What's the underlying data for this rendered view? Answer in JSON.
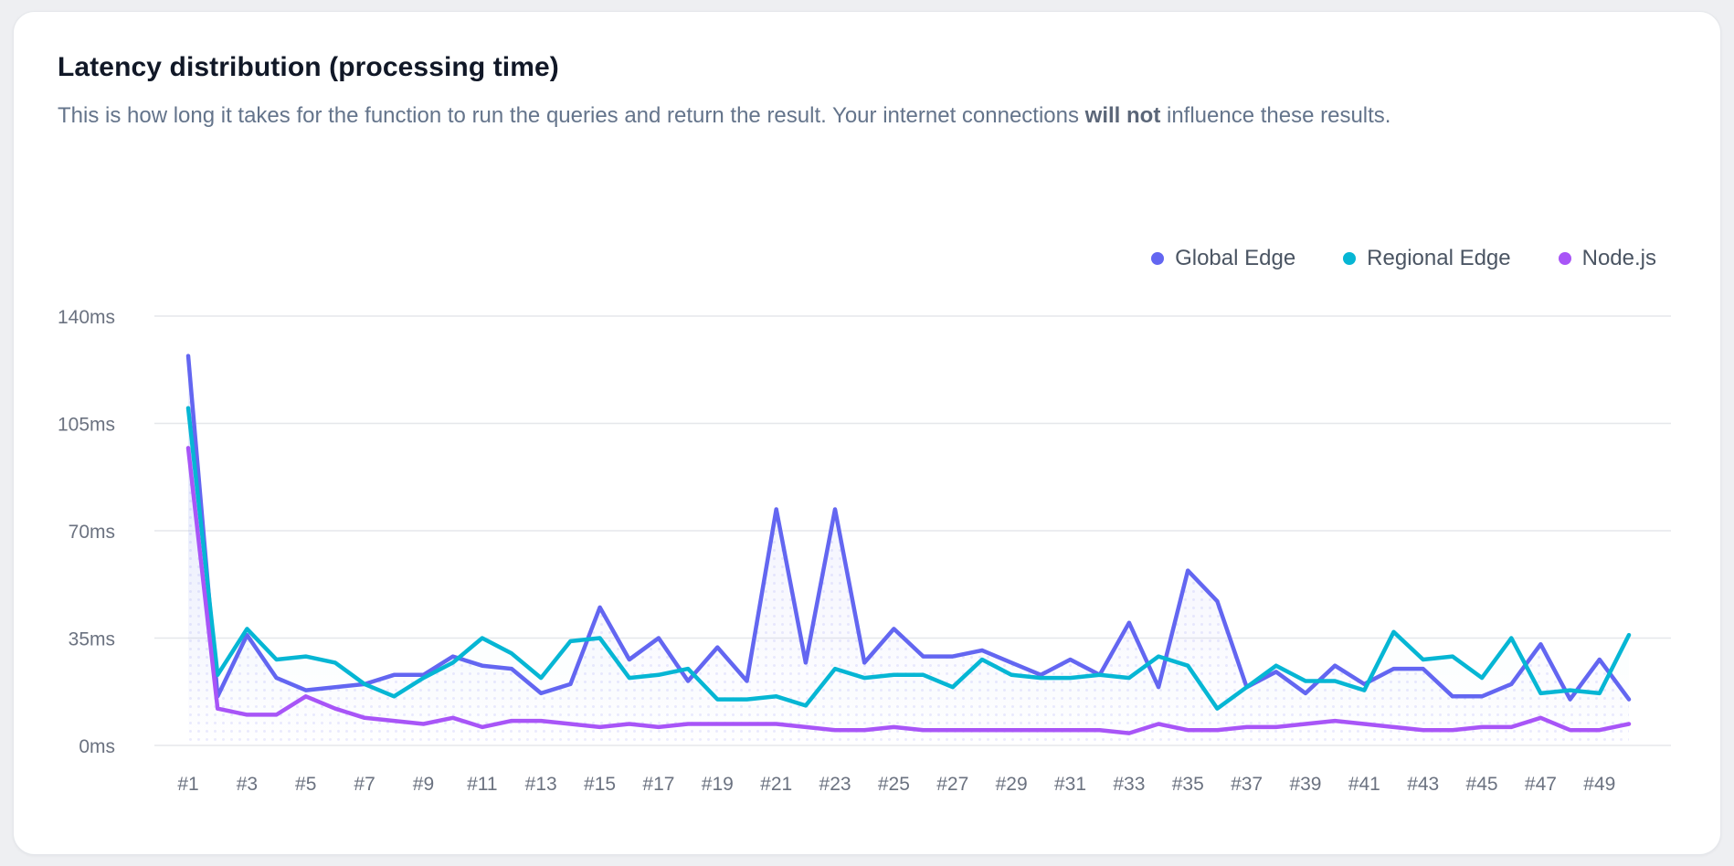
{
  "card": {
    "title": "Latency distribution (processing time)",
    "subtitle": {
      "part1": "This is how long it takes for the function to run the queries and return the result. Your internet connections ",
      "bold": "will not",
      "part2": " influence these results."
    }
  },
  "chart_data": {
    "type": "line",
    "title": "Latency distribution (processing time)",
    "categories": [
      "#1",
      "#2",
      "#3",
      "#4",
      "#5",
      "#6",
      "#7",
      "#8",
      "#9",
      "#10",
      "#11",
      "#12",
      "#13",
      "#14",
      "#15",
      "#16",
      "#17",
      "#18",
      "#19",
      "#20",
      "#21",
      "#22",
      "#23",
      "#24",
      "#25",
      "#26",
      "#27",
      "#28",
      "#29",
      "#30",
      "#31",
      "#32",
      "#33",
      "#34",
      "#35",
      "#36",
      "#37",
      "#38",
      "#39",
      "#40",
      "#41",
      "#42",
      "#43",
      "#44",
      "#45",
      "#46",
      "#47",
      "#48",
      "#49",
      "#50"
    ],
    "x_tick_every": 2,
    "y_ticks": [
      0,
      35,
      70,
      105,
      140
    ],
    "y_unit": "ms",
    "ylim": [
      0,
      140
    ],
    "grid": "horizontal-only",
    "legend_position": "top-right",
    "series": [
      {
        "name": "Global Edge",
        "color": "#6366f1",
        "values": [
          127,
          16,
          36,
          22,
          18,
          19,
          20,
          23,
          23,
          29,
          26,
          25,
          17,
          20,
          45,
          28,
          35,
          21,
          32,
          21,
          77,
          27,
          77,
          27,
          38,
          29,
          29,
          31,
          27,
          23,
          28,
          23,
          40,
          19,
          57,
          47,
          19,
          24,
          17,
          26,
          20,
          25,
          25,
          16,
          16,
          20,
          33,
          15,
          28,
          15
        ]
      },
      {
        "name": "Regional Edge",
        "color": "#06b6d4",
        "values": [
          110,
          23,
          38,
          28,
          29,
          27,
          20,
          16,
          22,
          27,
          35,
          30,
          22,
          34,
          35,
          22,
          23,
          25,
          15,
          15,
          16,
          13,
          25,
          22,
          23,
          23,
          19,
          28,
          23,
          22,
          22,
          23,
          22,
          29,
          26,
          12,
          19,
          26,
          21,
          21,
          18,
          37,
          28,
          29,
          22,
          35,
          17,
          18,
          17,
          36
        ]
      },
      {
        "name": "Node.js",
        "color": "#a855f7",
        "values": [
          97,
          12,
          10,
          10,
          16,
          12,
          9,
          8,
          7,
          9,
          6,
          8,
          8,
          7,
          6,
          7,
          6,
          7,
          7,
          7,
          7,
          6,
          5,
          5,
          6,
          5,
          5,
          5,
          5,
          5,
          5,
          5,
          4,
          7,
          5,
          5,
          6,
          6,
          7,
          8,
          7,
          6,
          5,
          5,
          6,
          6,
          9,
          5,
          5,
          7
        ]
      }
    ],
    "style": {
      "axis_label_color": "#6b7280",
      "gridline_color": "#e5e7eb",
      "area_fill_opacities": [
        0.13,
        0.06,
        0.05
      ]
    }
  }
}
